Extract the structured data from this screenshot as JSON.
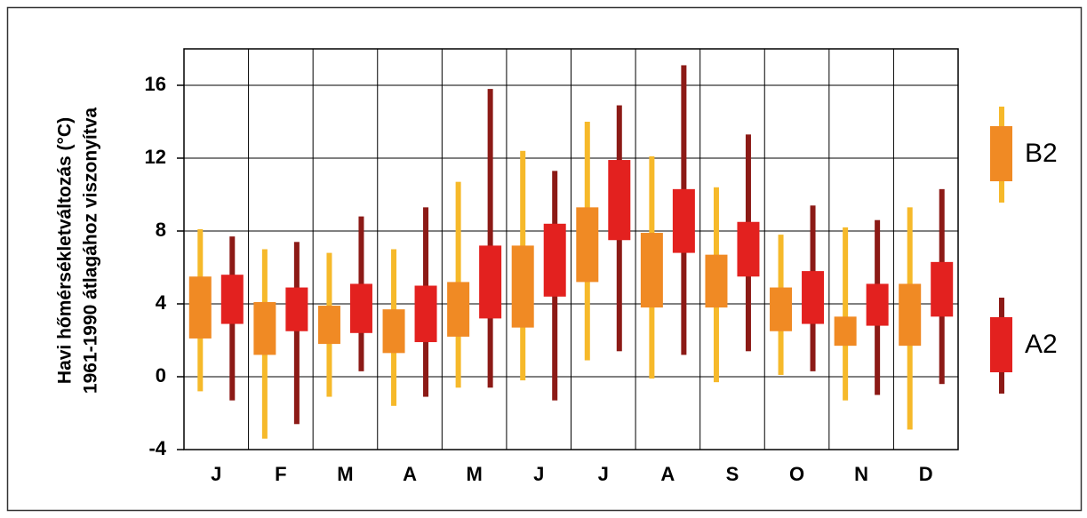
{
  "chart_data": {
    "type": "range-box",
    "ylabel": [
      "Havi hőmérsékletváltozás (°C)",
      "1961-1990 átlagához viszonyítva"
    ],
    "categories": [
      "J",
      "F",
      "M",
      "A",
      "M",
      "J",
      "J",
      "A",
      "S",
      "O",
      "N",
      "D"
    ],
    "ylim": [
      -4,
      18
    ],
    "yticks": [
      -4,
      0,
      4,
      8,
      12,
      16
    ],
    "grid": true,
    "series": [
      {
        "name": "B2",
        "color": "#f08a24",
        "whisker_color": "#f6b92a",
        "low": [
          -0.8,
          -3.4,
          -1.1,
          -1.6,
          -0.6,
          -0.2,
          0.9,
          -0.1,
          -0.3,
          0.1,
          -1.3,
          -2.9
        ],
        "q1": [
          2.1,
          1.2,
          1.8,
          1.3,
          2.2,
          2.7,
          5.2,
          3.8,
          3.8,
          2.5,
          1.7,
          1.7
        ],
        "q3": [
          5.5,
          4.1,
          3.9,
          3.7,
          5.2,
          7.2,
          9.3,
          7.9,
          6.7,
          4.9,
          3.3,
          5.1
        ],
        "high": [
          8.1,
          7.0,
          6.8,
          7.0,
          10.7,
          12.4,
          14.0,
          12.1,
          10.4,
          7.8,
          8.2,
          9.3
        ]
      },
      {
        "name": "A2",
        "color": "#e3211f",
        "whisker_color": "#8c1a16",
        "low": [
          -1.3,
          -2.6,
          0.3,
          -1.1,
          -0.6,
          -1.3,
          1.4,
          1.2,
          1.4,
          0.3,
          -1.0,
          -0.4
        ],
        "q1": [
          2.9,
          2.5,
          2.4,
          1.9,
          3.2,
          4.4,
          7.5,
          6.8,
          5.5,
          2.9,
          2.8,
          3.3
        ],
        "q3": [
          5.6,
          4.9,
          5.1,
          5.0,
          7.2,
          8.4,
          11.9,
          10.3,
          8.5,
          5.8,
          5.1,
          6.3
        ],
        "high": [
          7.7,
          7.4,
          8.8,
          9.3,
          15.8,
          11.3,
          14.9,
          17.1,
          13.3,
          9.4,
          8.6,
          10.3
        ]
      }
    ]
  }
}
